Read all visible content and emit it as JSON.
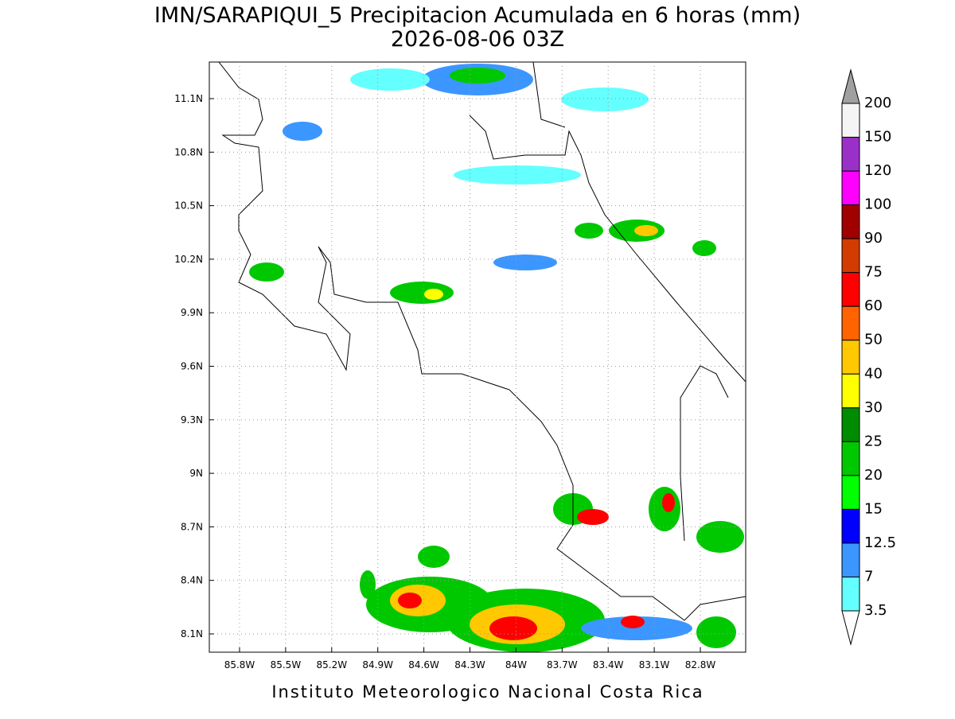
{
  "header": {
    "title": "IMN/SARAPIQUI_5 Precipitacion Acumulada en 6 horas (mm)",
    "subtitle": "2026-08-06 03Z"
  },
  "map": {
    "lat_labels": [
      "11.1N",
      "10.8N",
      "10.5N",
      "10.2N",
      "9.9N",
      "9.6N",
      "9.3N",
      "9N",
      "8.7N",
      "8.4N",
      "8.1N"
    ],
    "lon_labels": [
      "85.8W",
      "85.5W",
      "85.2W",
      "84.9W",
      "84.6W",
      "84.3W",
      "84W",
      "83.7W",
      "83.4W",
      "83.1W",
      "82.8W"
    ]
  },
  "colorbar": {
    "levels": [
      "200",
      "150",
      "120",
      "100",
      "90",
      "75",
      "60",
      "50",
      "40",
      "30",
      "25",
      "20",
      "15",
      "12.5",
      "7",
      "3.5"
    ],
    "colors": [
      "#f5f5f5",
      "#9a30c8",
      "#ff00ff",
      "#a00000",
      "#d23c00",
      "#ff0000",
      "#ff6400",
      "#ffc800",
      "#ffff00",
      "#008c00",
      "#00c800",
      "#00ff00",
      "#0000ff",
      "#3c96ff",
      "#64ffff"
    ]
  },
  "footer": "Instituto Meteorologico Nacional Costa Rica"
}
